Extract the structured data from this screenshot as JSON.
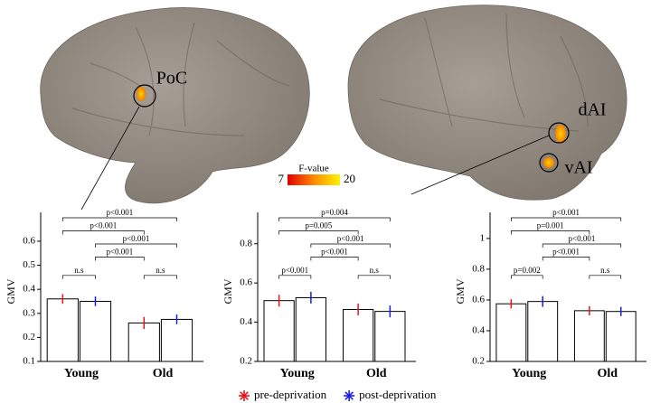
{
  "brain": {
    "labels": [
      "PoC",
      "dAI",
      "vAI"
    ],
    "colorbar": {
      "title": "F-value",
      "ticks": [
        7,
        20
      ]
    }
  },
  "chart_data": [
    {
      "type": "bar",
      "y_label": "GMV",
      "categories": [
        "Young",
        "Old"
      ],
      "series": [
        {
          "name": "pre-deprivation",
          "color": "#e8141c",
          "values": [
            0.36,
            0.26
          ],
          "errors": [
            0.02,
            0.025
          ]
        },
        {
          "name": "post-deprivation",
          "color": "#1a1aeb",
          "values": [
            0.35,
            0.275
          ],
          "errors": [
            0.02,
            0.02
          ]
        }
      ],
      "annotations": [
        "p<0.001",
        "p<0.001",
        "p<0.001",
        "p<0.001",
        "n.s",
        "n.s"
      ],
      "ylim": [
        0.1,
        0.72
      ],
      "yticks": [
        0.1,
        0.2,
        0.3,
        0.4,
        0.5,
        0.6
      ]
    },
    {
      "type": "bar",
      "y_label": "GMV",
      "categories": [
        "Young",
        "Old"
      ],
      "series": [
        {
          "color": "#e8141c",
          "values": [
            0.51,
            0.465
          ],
          "errors": [
            0.03,
            0.03
          ]
        },
        {
          "color": "#1a1aeb",
          "values": [
            0.525,
            0.455
          ],
          "errors": [
            0.03,
            0.03
          ]
        }
      ],
      "annotations": [
        "p=0.004",
        "p=0.005",
        "p<0.001",
        "p<0.001",
        "p<0.001",
        "n.s"
      ],
      "ylim": [
        0.2,
        0.96
      ],
      "yticks": [
        0.2,
        0.4,
        0.6,
        0.8
      ]
    },
    {
      "type": "bar",
      "y_label": "GMV",
      "categories": [
        "Young",
        "Old"
      ],
      "series": [
        {
          "color": "#e8141c",
          "values": [
            0.575,
            0.53
          ],
          "errors": [
            0.03,
            0.03
          ]
        },
        {
          "color": "#1a1aeb",
          "values": [
            0.59,
            0.525
          ],
          "errors": [
            0.035,
            0.03
          ]
        }
      ],
      "annotations": [
        "p<0.001",
        "p=0.001",
        "p<0.001",
        "p<0.001",
        "p=0.002",
        "n.s"
      ],
      "ylim": [
        0.2,
        1.17
      ],
      "yticks": [
        0.2,
        0.4,
        0.6,
        0.8,
        1
      ]
    }
  ]
}
